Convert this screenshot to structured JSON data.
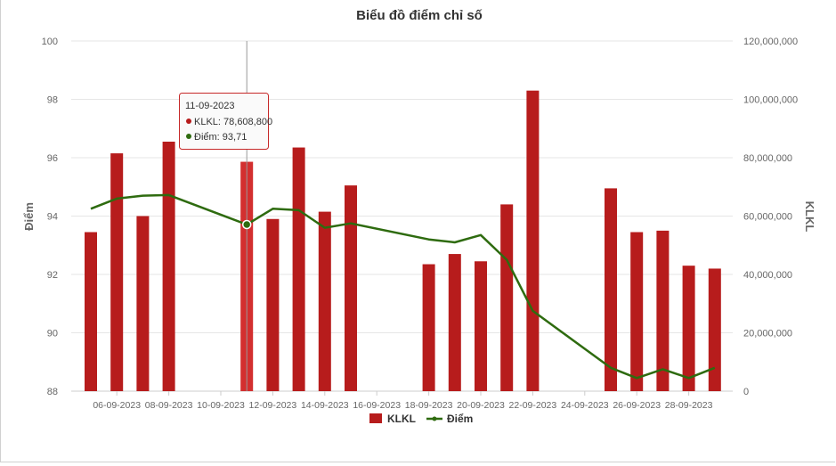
{
  "chart_data": {
    "type": "bar",
    "title": "Biểu đồ điểm chỉ số",
    "ylabel_left": "Điểm",
    "ylabel_right": "KLKL",
    "legend_position": "bottom",
    "grid": true,
    "ylim_left": [
      88,
      100
    ],
    "ylim_right": [
      0,
      120000000
    ],
    "yticks_left": [
      "100",
      "98",
      "96",
      "94",
      "92",
      "90",
      "88"
    ],
    "yticks_right": [
      "120,000,000",
      "100,000,000",
      "80,000,000",
      "60,000,000",
      "40,000,000",
      "20,000,000",
      "0"
    ],
    "xticks": [
      "06-09-2023",
      "08-09-2023",
      "10-09-2023",
      "12-09-2023",
      "14-09-2023",
      "16-09-2023",
      "18-09-2023",
      "20-09-2023",
      "22-09-2023",
      "24-09-2023",
      "26-09-2023",
      "28-09-2023"
    ],
    "colors": {
      "bar": "#b71c1c",
      "bar_highlight": "#d32f2f",
      "line": "#2e6b0f",
      "grid": "#e6e6e6"
    },
    "series": [
      {
        "name": "KLKL",
        "type": "bar",
        "axis": "right",
        "points": [
          {
            "date": "05-09-2023",
            "value": 54500000
          },
          {
            "date": "06-09-2023",
            "value": 81500000
          },
          {
            "date": "07-09-2023",
            "value": 60000000
          },
          {
            "date": "08-09-2023",
            "value": 85500000
          },
          {
            "date": "11-09-2023",
            "value": 78608800
          },
          {
            "date": "12-09-2023",
            "value": 59000000
          },
          {
            "date": "13-09-2023",
            "value": 83500000
          },
          {
            "date": "14-09-2023",
            "value": 61500000
          },
          {
            "date": "15-09-2023",
            "value": 70500000
          },
          {
            "date": "18-09-2023",
            "value": 43500000
          },
          {
            "date": "19-09-2023",
            "value": 47000000
          },
          {
            "date": "20-09-2023",
            "value": 44500000
          },
          {
            "date": "21-09-2023",
            "value": 64000000
          },
          {
            "date": "22-09-2023",
            "value": 103000000
          },
          {
            "date": "25-09-2023",
            "value": 69500000
          },
          {
            "date": "26-09-2023",
            "value": 54500000
          },
          {
            "date": "27-09-2023",
            "value": 55000000
          },
          {
            "date": "28-09-2023",
            "value": 43000000
          },
          {
            "date": "29-09-2023",
            "value": 42000000
          }
        ]
      },
      {
        "name": "Điểm",
        "type": "line",
        "axis": "left",
        "points": [
          {
            "date": "05-09-2023",
            "value": 94.25
          },
          {
            "date": "06-09-2023",
            "value": 94.6
          },
          {
            "date": "07-09-2023",
            "value": 94.7
          },
          {
            "date": "08-09-2023",
            "value": 94.72
          },
          {
            "date": "11-09-2023",
            "value": 93.71
          },
          {
            "date": "12-09-2023",
            "value": 94.25
          },
          {
            "date": "13-09-2023",
            "value": 94.2
          },
          {
            "date": "14-09-2023",
            "value": 93.6
          },
          {
            "date": "15-09-2023",
            "value": 93.75
          },
          {
            "date": "18-09-2023",
            "value": 93.2
          },
          {
            "date": "19-09-2023",
            "value": 93.1
          },
          {
            "date": "20-09-2023",
            "value": 93.35
          },
          {
            "date": "21-09-2023",
            "value": 92.5
          },
          {
            "date": "22-09-2023",
            "value": 90.75
          },
          {
            "date": "25-09-2023",
            "value": 88.8
          },
          {
            "date": "26-09-2023",
            "value": 88.45
          },
          {
            "date": "27-09-2023",
            "value": 88.75
          },
          {
            "date": "28-09-2023",
            "value": 88.45
          },
          {
            "date": "29-09-2023",
            "value": 88.8
          }
        ]
      }
    ],
    "tooltip": {
      "date": "11-09-2023",
      "lines": [
        {
          "series": "KLKL",
          "text": "KLKL: 78,608,800"
        },
        {
          "series": "Điểm",
          "text": "Điểm: 93,71"
        }
      ]
    }
  }
}
